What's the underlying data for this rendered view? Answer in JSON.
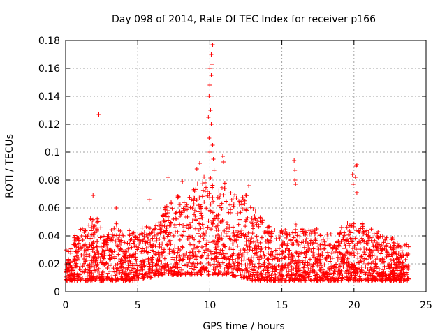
{
  "chart_data": {
    "type": "scatter",
    "title": "Day 098 of 2014, Rate Of TEC Index for receiver p166",
    "xlabel": "GPS time / hours",
    "ylabel": "ROTI / TECUs",
    "xlim": [
      0,
      25
    ],
    "ylim": [
      0,
      0.18
    ],
    "xticks": [
      0,
      5,
      10,
      15,
      20,
      25
    ],
    "yticks": [
      0,
      0.02,
      0.04,
      0.06,
      0.08,
      0.1,
      0.12,
      0.14,
      0.16,
      0.18
    ],
    "marker": "+",
    "grid": true,
    "color": "#ff0000",
    "series": [
      {
        "name": "ROTI",
        "envelope": {
          "hours": [
            0,
            0.5,
            1,
            1.5,
            2,
            2.5,
            3,
            3.5,
            4,
            4.5,
            5,
            5.5,
            6,
            6.5,
            7,
            7.5,
            8,
            8.5,
            9,
            9.5,
            10,
            10.5,
            11,
            11.5,
            12,
            12.5,
            13,
            13.5,
            14,
            14.5,
            15,
            15.5,
            16,
            16.5,
            17,
            17.5,
            18,
            18.5,
            19,
            19.5,
            20,
            20.5,
            21,
            21.5,
            22,
            22.5,
            23,
            23.5,
            23.8
          ],
          "typical_max": [
            0.03,
            0.04,
            0.045,
            0.048,
            0.06,
            0.045,
            0.042,
            0.055,
            0.04,
            0.045,
            0.04,
            0.05,
            0.045,
            0.05,
            0.065,
            0.07,
            0.07,
            0.065,
            0.08,
            0.085,
            0.085,
            0.07,
            0.08,
            0.075,
            0.065,
            0.07,
            0.06,
            0.055,
            0.05,
            0.045,
            0.045,
            0.045,
            0.05,
            0.045,
            0.045,
            0.045,
            0.04,
            0.045,
            0.045,
            0.05,
            0.05,
            0.05,
            0.045,
            0.045,
            0.04,
            0.04,
            0.035,
            0.035,
            0.035
          ],
          "typical_min": [
            0.008,
            0.008,
            0.008,
            0.008,
            0.008,
            0.008,
            0.008,
            0.008,
            0.008,
            0.008,
            0.008,
            0.01,
            0.01,
            0.012,
            0.012,
            0.012,
            0.012,
            0.012,
            0.012,
            0.012,
            0.012,
            0.012,
            0.012,
            0.012,
            0.01,
            0.01,
            0.008,
            0.008,
            0.008,
            0.008,
            0.008,
            0.008,
            0.008,
            0.008,
            0.008,
            0.008,
            0.008,
            0.008,
            0.008,
            0.008,
            0.008,
            0.008,
            0.008,
            0.008,
            0.008,
            0.008,
            0.008,
            0.008,
            0.008
          ]
        },
        "notable_points": [
          {
            "x": 2.3,
            "y": 0.127
          },
          {
            "x": 10.2,
            "y": 0.177
          },
          {
            "x": 10.1,
            "y": 0.17
          },
          {
            "x": 10.15,
            "y": 0.163
          },
          {
            "x": 10.0,
            "y": 0.16
          },
          {
            "x": 10.1,
            "y": 0.155
          },
          {
            "x": 10.0,
            "y": 0.148
          },
          {
            "x": 9.95,
            "y": 0.14
          },
          {
            "x": 10.05,
            "y": 0.13
          },
          {
            "x": 9.9,
            "y": 0.125
          },
          {
            "x": 10.1,
            "y": 0.12
          },
          {
            "x": 9.95,
            "y": 0.11
          },
          {
            "x": 10.2,
            "y": 0.105
          },
          {
            "x": 10.0,
            "y": 0.1
          },
          {
            "x": 10.25,
            "y": 0.095
          },
          {
            "x": 10.3,
            "y": 0.087
          },
          {
            "x": 10.9,
            "y": 0.097
          },
          {
            "x": 10.95,
            "y": 0.093
          },
          {
            "x": 9.3,
            "y": 0.092
          },
          {
            "x": 9.1,
            "y": 0.088
          },
          {
            "x": 15.85,
            "y": 0.094
          },
          {
            "x": 15.9,
            "y": 0.087
          },
          {
            "x": 15.9,
            "y": 0.08
          },
          {
            "x": 15.95,
            "y": 0.077
          },
          {
            "x": 20.2,
            "y": 0.091
          },
          {
            "x": 20.15,
            "y": 0.09
          },
          {
            "x": 19.9,
            "y": 0.084
          },
          {
            "x": 20.1,
            "y": 0.082
          },
          {
            "x": 19.95,
            "y": 0.077
          },
          {
            "x": 20.2,
            "y": 0.071
          },
          {
            "x": 1.9,
            "y": 0.069
          },
          {
            "x": 12.7,
            "y": 0.076
          },
          {
            "x": 7.1,
            "y": 0.082
          },
          {
            "x": 8.1,
            "y": 0.079
          },
          {
            "x": 5.8,
            "y": 0.066
          },
          {
            "x": 3.5,
            "y": 0.06
          }
        ]
      }
    ]
  }
}
